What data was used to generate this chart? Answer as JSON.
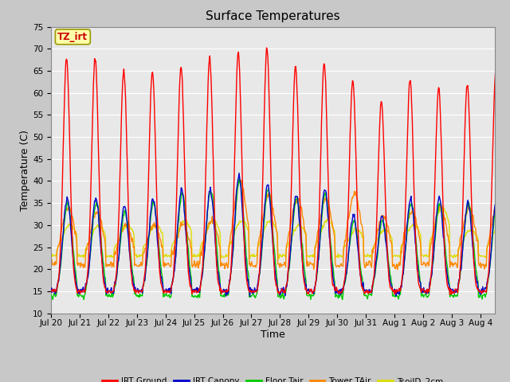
{
  "title": "Surface Temperatures",
  "xlabel": "Time",
  "ylabel": "Temperature (C)",
  "ylim": [
    10,
    75
  ],
  "yticks": [
    10,
    15,
    20,
    25,
    30,
    35,
    40,
    45,
    50,
    55,
    60,
    65,
    70,
    75
  ],
  "legend": [
    "IRT Ground",
    "IRT Canopy",
    "Floor Tair",
    "Tower TAir",
    "TsoilD_2cm"
  ],
  "colors": [
    "#ff0000",
    "#0000cc",
    "#00cc00",
    "#ff8800",
    "#dddd00"
  ],
  "annotation_text": "TZ_irt",
  "annotation_bg": "#ffffaa",
  "annotation_border": "#999900",
  "annotation_text_color": "#cc0000",
  "fig_bg": "#c8c8c8",
  "plot_bg": "#e8e8e8",
  "grid_color": "#ffffff",
  "tick_label_fontsize": 7.5,
  "axis_label_fontsize": 9,
  "title_fontsize": 11
}
